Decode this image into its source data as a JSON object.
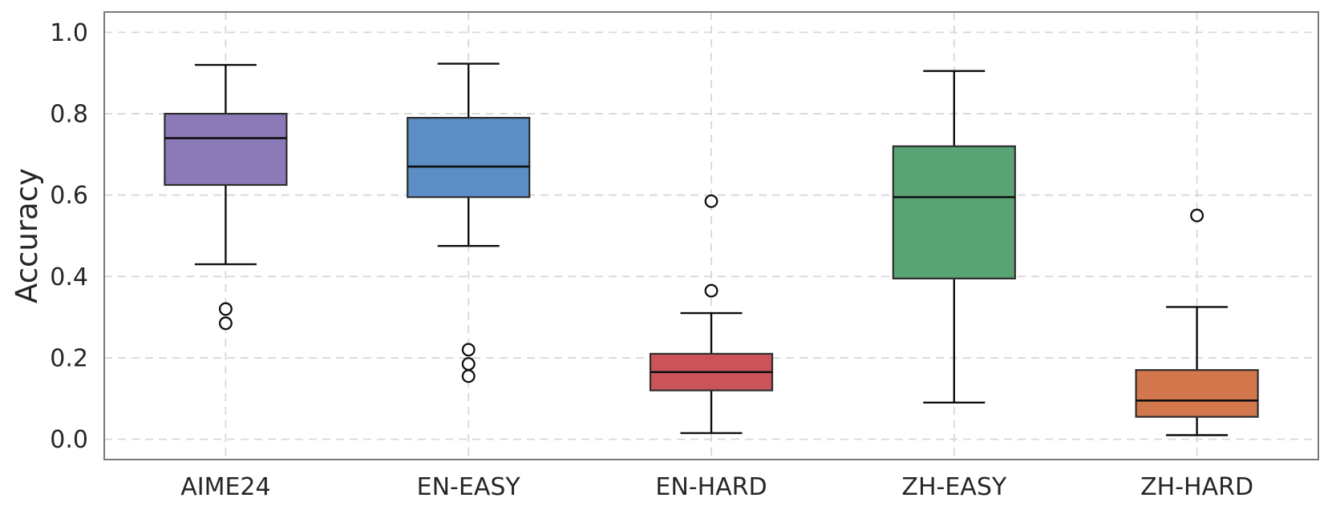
{
  "figure": {
    "background": "#ffffff",
    "plot_background": "#ffffff"
  },
  "chart_data": {
    "type": "box",
    "title": "",
    "xlabel": "",
    "ylabel": "Accuracy",
    "categories": [
      "AIME24",
      "EN-EASY",
      "EN-HARD",
      "ZH-EASY",
      "ZH-HARD"
    ],
    "y_ticks": [
      0.0,
      0.2,
      0.4,
      0.6,
      0.8,
      1.0
    ],
    "y_tick_labels": [
      "0.0",
      "0.2",
      "0.4",
      "0.6",
      "0.8",
      "1.0"
    ],
    "ylim": [
      -0.05,
      1.05
    ],
    "grid": {
      "horizontal": true,
      "vertical": true,
      "style": "dashed",
      "color": "#d8d8d8"
    },
    "legend": "none",
    "boxes": [
      {
        "category": "AIME24",
        "color": "#8C7AB8",
        "whisker_low": 0.43,
        "q1": 0.625,
        "median": 0.74,
        "q3": 0.8,
        "whisker_high": 0.92,
        "outliers": [
          0.285,
          0.32
        ]
      },
      {
        "category": "EN-EASY",
        "color": "#5B8EC4",
        "whisker_low": 0.475,
        "q1": 0.595,
        "median": 0.67,
        "q3": 0.79,
        "whisker_high": 0.923,
        "outliers": [
          0.155,
          0.185,
          0.22
        ]
      },
      {
        "category": "EN-HARD",
        "color": "#CB545A",
        "whisker_low": 0.015,
        "q1": 0.12,
        "median": 0.165,
        "q3": 0.21,
        "whisker_high": 0.31,
        "outliers": [
          0.365,
          0.585
        ]
      },
      {
        "category": "ZH-EASY",
        "color": "#5AA374",
        "whisker_low": 0.09,
        "q1": 0.395,
        "median": 0.595,
        "q3": 0.72,
        "whisker_high": 0.905,
        "outliers": []
      },
      {
        "category": "ZH-HARD",
        "color": "#D2784C",
        "whisker_low": 0.01,
        "q1": 0.055,
        "median": 0.095,
        "q3": 0.17,
        "whisker_high": 0.325,
        "outliers": [
          0.55
        ]
      }
    ],
    "style": {
      "box_edge_color": "#2e2e2e",
      "median_color": "#0f0f0f",
      "whisker_color": "#0f0f0f",
      "outlier_edge_color": "#0f0f0f",
      "outlier_fill_color": "#ffffff",
      "spine_color": "#787878",
      "tick_label_color": "#262626"
    }
  }
}
